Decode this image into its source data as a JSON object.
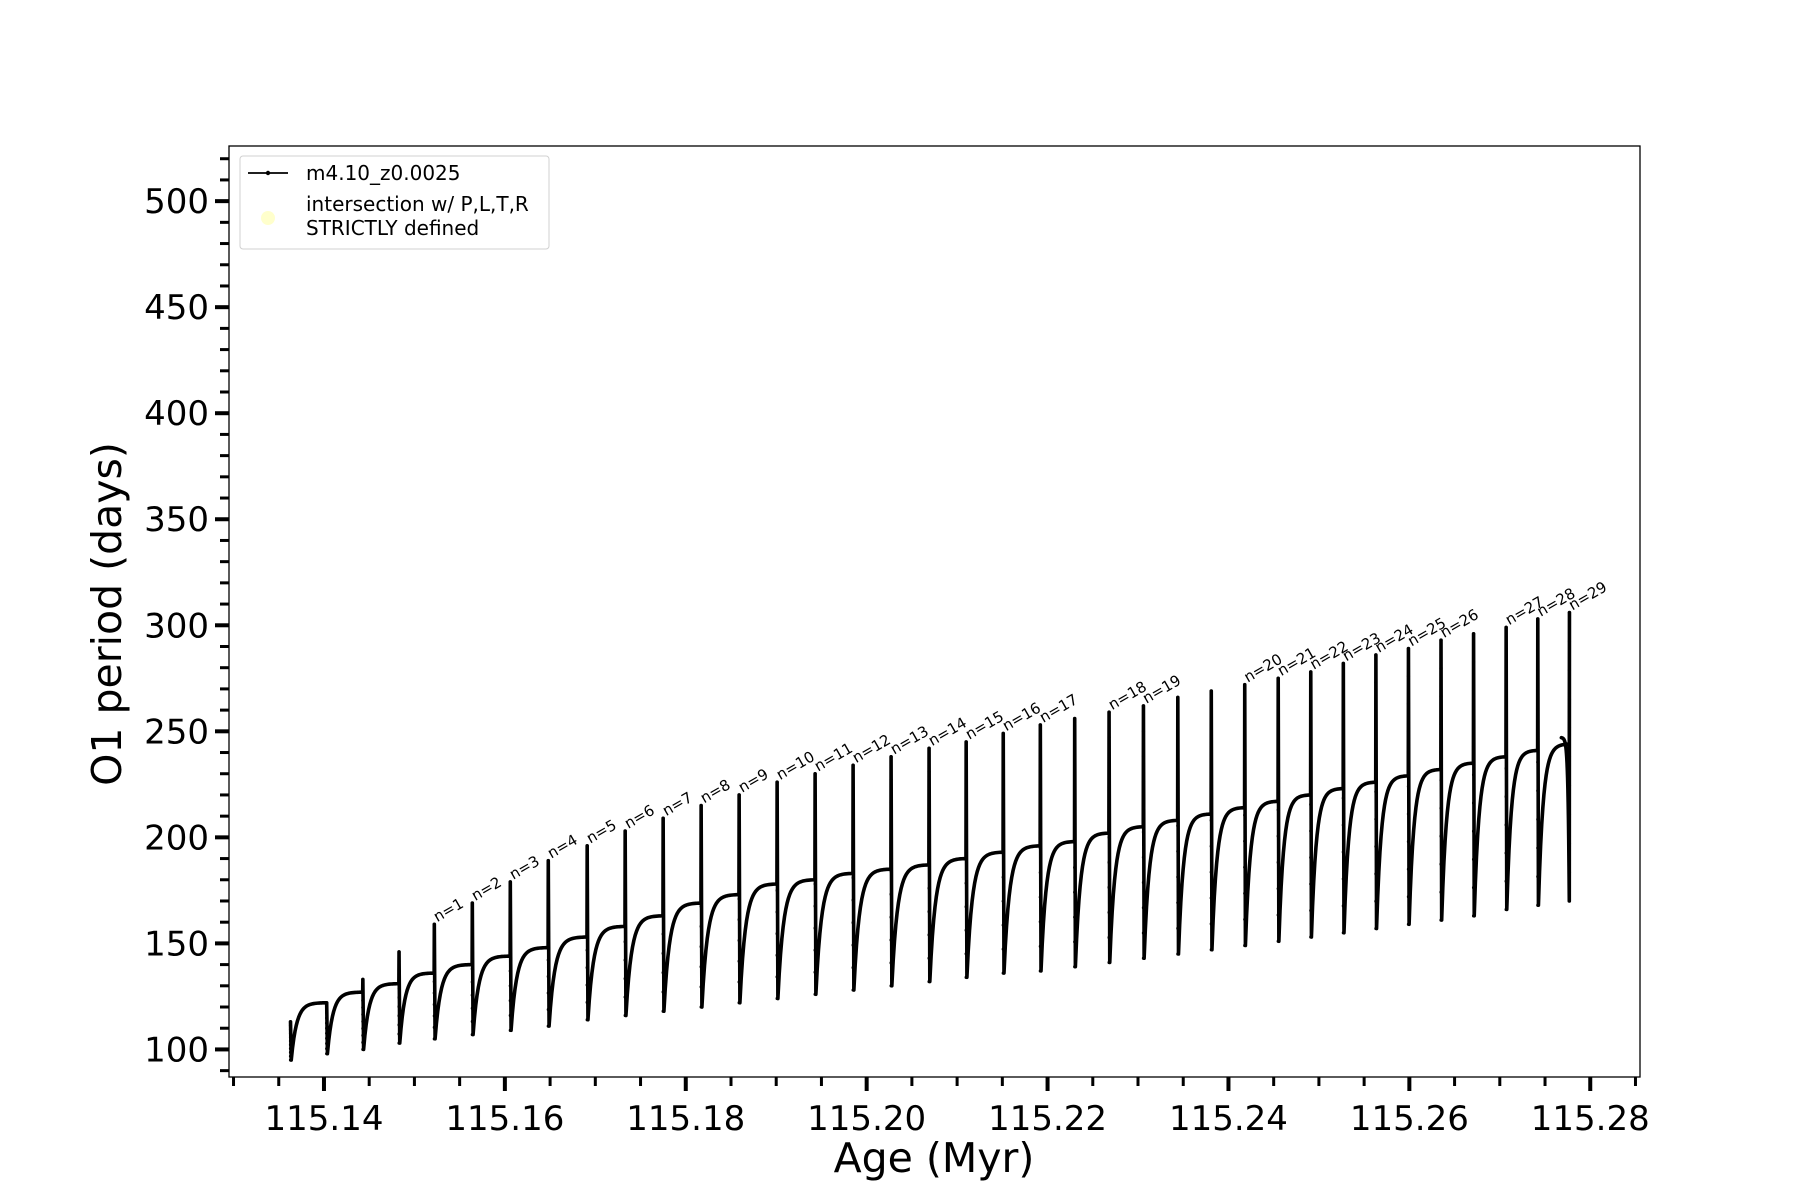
{
  "chart_data": {
    "type": "line",
    "xlabel": "Age (Myr)",
    "ylabel": "O1 period (days)",
    "xlim": [
      115.1295,
      115.2855
    ],
    "ylim": [
      87,
      526
    ],
    "x_ticks": [
      {
        "value": 115.14,
        "label": "115.14"
      },
      {
        "value": 115.16,
        "label": "115.16"
      },
      {
        "value": 115.18,
        "label": "115.18"
      },
      {
        "value": 115.2,
        "label": "115.20"
      },
      {
        "value": 115.22,
        "label": "115.22"
      },
      {
        "value": 115.24,
        "label": "115.24"
      },
      {
        "value": 115.26,
        "label": "115.26"
      },
      {
        "value": 115.28,
        "label": "115.28"
      }
    ],
    "y_ticks": [
      {
        "value": 100,
        "label": "100"
      },
      {
        "value": 150,
        "label": "150"
      },
      {
        "value": 200,
        "label": "200"
      },
      {
        "value": 250,
        "label": "250"
      },
      {
        "value": 300,
        "label": "300"
      },
      {
        "value": 350,
        "label": "350"
      },
      {
        "value": 400,
        "label": "400"
      },
      {
        "value": 450,
        "label": "450"
      },
      {
        "value": 500,
        "label": "500"
      }
    ],
    "grid": false,
    "legend_position": "top-left",
    "legend": [
      {
        "label": "m4.10_z0.0025",
        "marker": "line-dot",
        "color": "#000000"
      },
      {
        "label_lines": [
          "intersection w/ P,L,T,R",
          "STRICTLY defined"
        ],
        "marker": "circle",
        "color": "#ffffcc"
      }
    ],
    "series": [
      {
        "name": "m4.10_z0.0025",
        "color": "#000000",
        "start": {
          "x": 115.1363,
          "y": 113
        },
        "end_value": 247,
        "end_x": 115.2768,
        "cycles": [
          {
            "x": 115.1363,
            "peak": 113,
            "min": 95,
            "plateau": 122,
            "label": ""
          },
          {
            "x": 115.1403,
            "peak": 122,
            "min": 98,
            "plateau": 127,
            "label": ""
          },
          {
            "x": 115.1443,
            "peak": 133,
            "min": 100,
            "plateau": 131,
            "label": ""
          },
          {
            "x": 115.1483,
            "peak": 146,
            "min": 103,
            "plateau": 136,
            "label": ""
          },
          {
            "x": 115.1522,
            "peak": 159,
            "min": 105,
            "plateau": 140,
            "label": "n=1"
          },
          {
            "x": 115.1564,
            "peak": 169,
            "min": 107,
            "plateau": 144,
            "label": "n=2"
          },
          {
            "x": 115.1606,
            "peak": 179,
            "min": 109,
            "plateau": 148,
            "label": "n=3"
          },
          {
            "x": 115.1648,
            "peak": 189,
            "min": 111,
            "plateau": 153,
            "label": "n=4"
          },
          {
            "x": 115.1691,
            "peak": 196,
            "min": 114,
            "plateau": 158,
            "label": "n=5"
          },
          {
            "x": 115.1733,
            "peak": 203,
            "min": 116,
            "plateau": 163,
            "label": "n=6"
          },
          {
            "x": 115.1775,
            "peak": 209,
            "min": 118,
            "plateau": 169,
            "label": "n=7"
          },
          {
            "x": 115.1817,
            "peak": 215,
            "min": 120,
            "plateau": 173,
            "label": "n=8"
          },
          {
            "x": 115.1859,
            "peak": 220,
            "min": 122,
            "plateau": 178,
            "label": "n=9"
          },
          {
            "x": 115.1901,
            "peak": 226,
            "min": 124,
            "plateau": 180,
            "label": "n=10"
          },
          {
            "x": 115.1943,
            "peak": 230,
            "min": 126,
            "plateau": 183,
            "label": "n=11"
          },
          {
            "x": 115.1985,
            "peak": 234,
            "min": 128,
            "plateau": 185,
            "label": "n=12"
          },
          {
            "x": 115.2027,
            "peak": 238,
            "min": 130,
            "plateau": 187,
            "label": "n=13"
          },
          {
            "x": 115.2069,
            "peak": 242,
            "min": 132,
            "plateau": 190,
            "label": "n=14"
          },
          {
            "x": 115.211,
            "peak": 245,
            "min": 134,
            "plateau": 193,
            "label": "n=15"
          },
          {
            "x": 115.2151,
            "peak": 249,
            "min": 136,
            "plateau": 196,
            "label": "n=16"
          },
          {
            "x": 115.2192,
            "peak": 253,
            "min": 137,
            "plateau": 198,
            "label": "n=17"
          },
          {
            "x": 115.223,
            "peak": 256,
            "min": 139,
            "plateau": 202,
            "label": ""
          },
          {
            "x": 115.2268,
            "peak": 259,
            "min": 141,
            "plateau": 205,
            "label": "n=18"
          },
          {
            "x": 115.2306,
            "peak": 262,
            "min": 143,
            "plateau": 208,
            "label": "n=19"
          },
          {
            "x": 115.2344,
            "peak": 266,
            "min": 145,
            "plateau": 211,
            "label": ""
          },
          {
            "x": 115.2381,
            "peak": 269,
            "min": 147,
            "plateau": 214,
            "label": ""
          },
          {
            "x": 115.2418,
            "peak": 272,
            "min": 149,
            "plateau": 217,
            "label": "n=20"
          },
          {
            "x": 115.2455,
            "peak": 275,
            "min": 151,
            "plateau": 220,
            "label": "n=21"
          },
          {
            "x": 115.2491,
            "peak": 278,
            "min": 153,
            "plateau": 223,
            "label": "n=22"
          },
          {
            "x": 115.2527,
            "peak": 282,
            "min": 155,
            "plateau": 226,
            "label": "n=23"
          },
          {
            "x": 115.2563,
            "peak": 286,
            "min": 157,
            "plateau": 229,
            "label": "n=24"
          },
          {
            "x": 115.2599,
            "peak": 289,
            "min": 159,
            "plateau": 232,
            "label": "n=25"
          },
          {
            "x": 115.2635,
            "peak": 293,
            "min": 161,
            "plateau": 235,
            "label": "n=26"
          },
          {
            "x": 115.2671,
            "peak": 296,
            "min": 163,
            "plateau": 238,
            "label": ""
          },
          {
            "x": 115.2707,
            "peak": 299,
            "min": 166,
            "plateau": 241,
            "label": "n=27"
          },
          {
            "x": 115.2742,
            "peak": 303,
            "min": 168,
            "plateau": 244,
            "label": "n=28"
          },
          {
            "x": 115.2777,
            "peak": 306,
            "min": 170,
            "plateau": 247,
            "label": "n=29"
          }
        ]
      }
    ]
  }
}
